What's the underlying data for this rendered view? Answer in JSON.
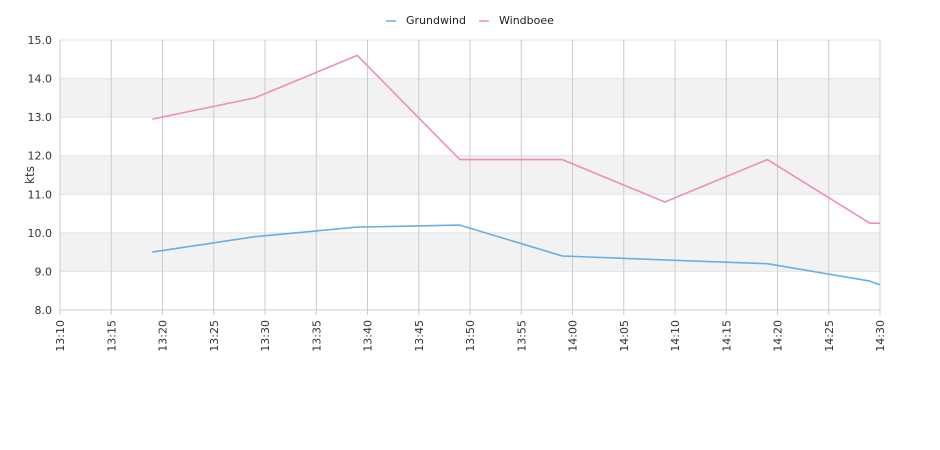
{
  "chart_data": {
    "type": "line",
    "title": "",
    "xlabel": "",
    "ylabel": "kts",
    "x_ticks": [
      "13:10",
      "13:15",
      "13:20",
      "13:25",
      "13:30",
      "13:35",
      "13:40",
      "13:45",
      "13:50",
      "13:55",
      "14:00",
      "14:05",
      "14:10",
      "14:15",
      "14:20",
      "14:25",
      "14:30"
    ],
    "y_ticks": [
      "8.0",
      "9.0",
      "10.0",
      "11.0",
      "12.0",
      "13.0",
      "14.0",
      "15.0"
    ],
    "xlim": [
      "13:10",
      "14:30"
    ],
    "ylim": [
      8.0,
      15.0
    ],
    "grid": "vertical lines at every x tick; alternating horizontal bands",
    "legend_position": "top-center",
    "series": [
      {
        "name": "Grundwind",
        "color": "#6aaee8",
        "points": [
          {
            "x": "13:19",
            "y": 9.5
          },
          {
            "x": "13:29",
            "y": 9.9
          },
          {
            "x": "13:39",
            "y": 10.15
          },
          {
            "x": "13:49",
            "y": 10.2
          },
          {
            "x": "13:59",
            "y": 9.4
          },
          {
            "x": "14:09",
            "y": 9.3
          },
          {
            "x": "14:19",
            "y": 9.2
          },
          {
            "x": "14:29",
            "y": 8.75
          },
          {
            "x": "14:30",
            "y": 8.65
          }
        ]
      },
      {
        "name": "Windboee",
        "color": "#f08cc0",
        "points": [
          {
            "x": "13:19",
            "y": 12.95
          },
          {
            "x": "13:29",
            "y": 13.5
          },
          {
            "x": "13:39",
            "y": 14.6
          },
          {
            "x": "13:49",
            "y": 11.9
          },
          {
            "x": "13:59",
            "y": 11.9
          },
          {
            "x": "14:09",
            "y": 10.8
          },
          {
            "x": "14:19",
            "y": 11.9
          },
          {
            "x": "14:29",
            "y": 10.25
          },
          {
            "x": "14:30",
            "y": 10.25
          }
        ]
      }
    ]
  }
}
